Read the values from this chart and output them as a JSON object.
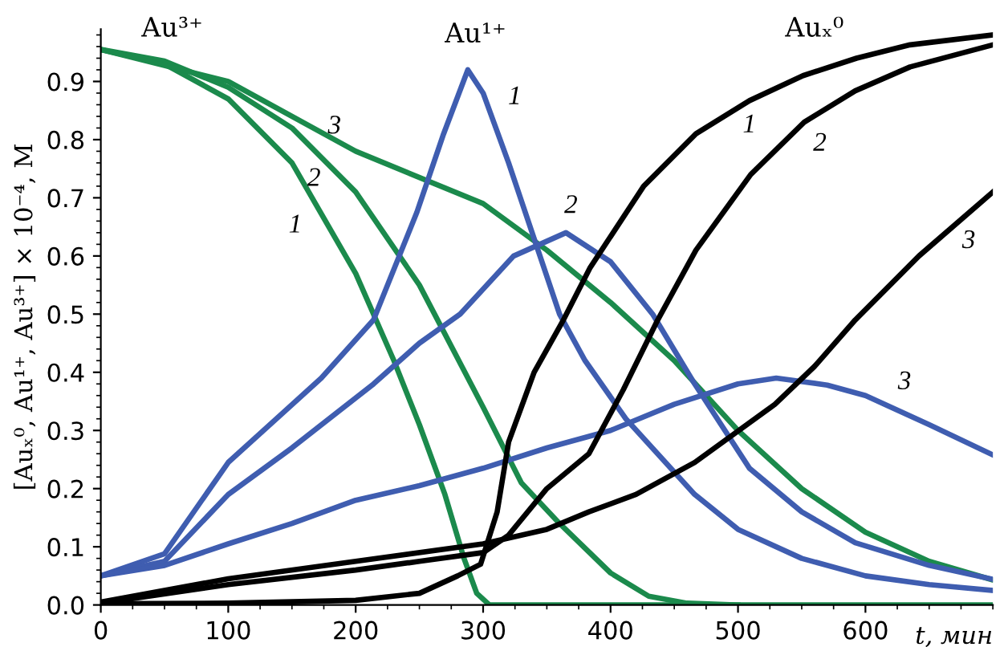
{
  "chart_data": {
    "type": "line",
    "xlabel": "t, мин",
    "ylabel": "[Auₓ⁰, Au¹⁺, Au³⁺] × 10⁻⁴, M",
    "xlim": [
      0,
      700
    ],
    "ylim": [
      0,
      0.99
    ],
    "xticks": [
      0,
      100,
      200,
      300,
      400,
      500,
      600
    ],
    "yticks": [
      {
        "value": 0,
        "label": "0.0"
      },
      0.1,
      0.2,
      0.3,
      0.4,
      0.5,
      0.6,
      0.7,
      0.8,
      0.9
    ],
    "grid": false,
    "legend": false,
    "marker": "none",
    "line_style": "solid",
    "series": [
      {
        "name": "1",
        "color": "#1b8a4c",
        "x": [
          0,
          50,
          100,
          150,
          200,
          230,
          250,
          270,
          285,
          295,
          305,
          700
        ],
        "values": [
          0.955,
          0.93,
          0.87,
          0.76,
          0.57,
          0.42,
          0.31,
          0.19,
          0.08,
          0.02,
          0.0,
          0.0
        ]
      },
      {
        "name": "2",
        "color": "#1b8a4c",
        "x": [
          0,
          50,
          100,
          150,
          200,
          250,
          300,
          330,
          360,
          400,
          430,
          460,
          500
        ],
        "values": [
          0.955,
          0.935,
          0.89,
          0.82,
          0.71,
          0.55,
          0.34,
          0.21,
          0.14,
          0.055,
          0.015,
          0.003,
          0.0
        ]
      },
      {
        "name": "3",
        "color": "#1b8a4c",
        "x": [
          0,
          100,
          200,
          300,
          350,
          400,
          450,
          500,
          550,
          600,
          650,
          700
        ],
        "values": [
          0.955,
          0.9,
          0.78,
          0.69,
          0.61,
          0.52,
          0.42,
          0.3,
          0.2,
          0.125,
          0.075,
          0.043
        ]
      },
      {
        "name": "1",
        "color": "#3f5db0",
        "x": [
          0,
          50,
          100,
          173,
          214,
          248,
          269,
          288,
          300,
          310,
          320,
          340,
          360,
          380,
          412,
          466,
          500,
          550,
          600,
          650,
          700
        ],
        "values": [
          0.05,
          0.088,
          0.245,
          0.39,
          0.49,
          0.675,
          0.81,
          0.92,
          0.88,
          0.82,
          0.76,
          0.63,
          0.5,
          0.42,
          0.32,
          0.19,
          0.13,
          0.08,
          0.05,
          0.035,
          0.025
        ]
      },
      {
        "name": "2",
        "color": "#3f5db0",
        "x": [
          0,
          50,
          100,
          150,
          214,
          250,
          282,
          324,
          365,
          400,
          433,
          466,
          509,
          550,
          592,
          650,
          700
        ],
        "values": [
          0.05,
          0.075,
          0.19,
          0.27,
          0.38,
          0.45,
          0.5,
          0.6,
          0.64,
          0.59,
          0.5,
          0.38,
          0.235,
          0.16,
          0.107,
          0.068,
          0.044
        ]
      },
      {
        "name": "3",
        "color": "#3f5db0",
        "x": [
          0,
          50,
          100,
          150,
          200,
          250,
          300,
          350,
          400,
          450,
          500,
          530,
          570,
          600,
          650,
          700
        ],
        "values": [
          0.05,
          0.068,
          0.105,
          0.14,
          0.18,
          0.205,
          0.235,
          0.27,
          0.3,
          0.345,
          0.38,
          0.39,
          0.378,
          0.36,
          0.31,
          0.258
        ]
      },
      {
        "name": "1",
        "color": "#000000",
        "x": [
          0,
          100,
          200,
          250,
          280,
          298,
          311,
          320,
          340,
          363,
          384,
          426,
          467,
          509,
          551,
          593,
          635,
          700
        ],
        "values": [
          0.002,
          0.003,
          0.008,
          0.02,
          0.05,
          0.07,
          0.16,
          0.28,
          0.4,
          0.49,
          0.58,
          0.72,
          0.81,
          0.867,
          0.91,
          0.94,
          0.963,
          0.98
        ]
      },
      {
        "name": "2",
        "color": "#000000",
        "x": [
          0,
          100,
          200,
          250,
          300,
          320,
          350,
          383,
          410,
          437,
          467,
          510,
          552,
          592,
          635,
          700
        ],
        "values": [
          0.003,
          0.035,
          0.06,
          0.075,
          0.09,
          0.12,
          0.2,
          0.26,
          0.37,
          0.49,
          0.61,
          0.74,
          0.83,
          0.884,
          0.925,
          0.963
        ]
      },
      {
        "name": "3",
        "color": "#000000",
        "x": [
          0,
          100,
          200,
          300,
          350,
          383,
          420,
          466,
          529,
          560,
          592,
          642,
          700
        ],
        "values": [
          0.005,
          0.045,
          0.075,
          0.105,
          0.13,
          0.16,
          0.19,
          0.245,
          0.345,
          0.41,
          0.49,
          0.6,
          0.71
        ]
      }
    ],
    "annotations": [
      "Au³⁺",
      "Au¹⁺",
      "Auₓ⁰"
    ]
  }
}
